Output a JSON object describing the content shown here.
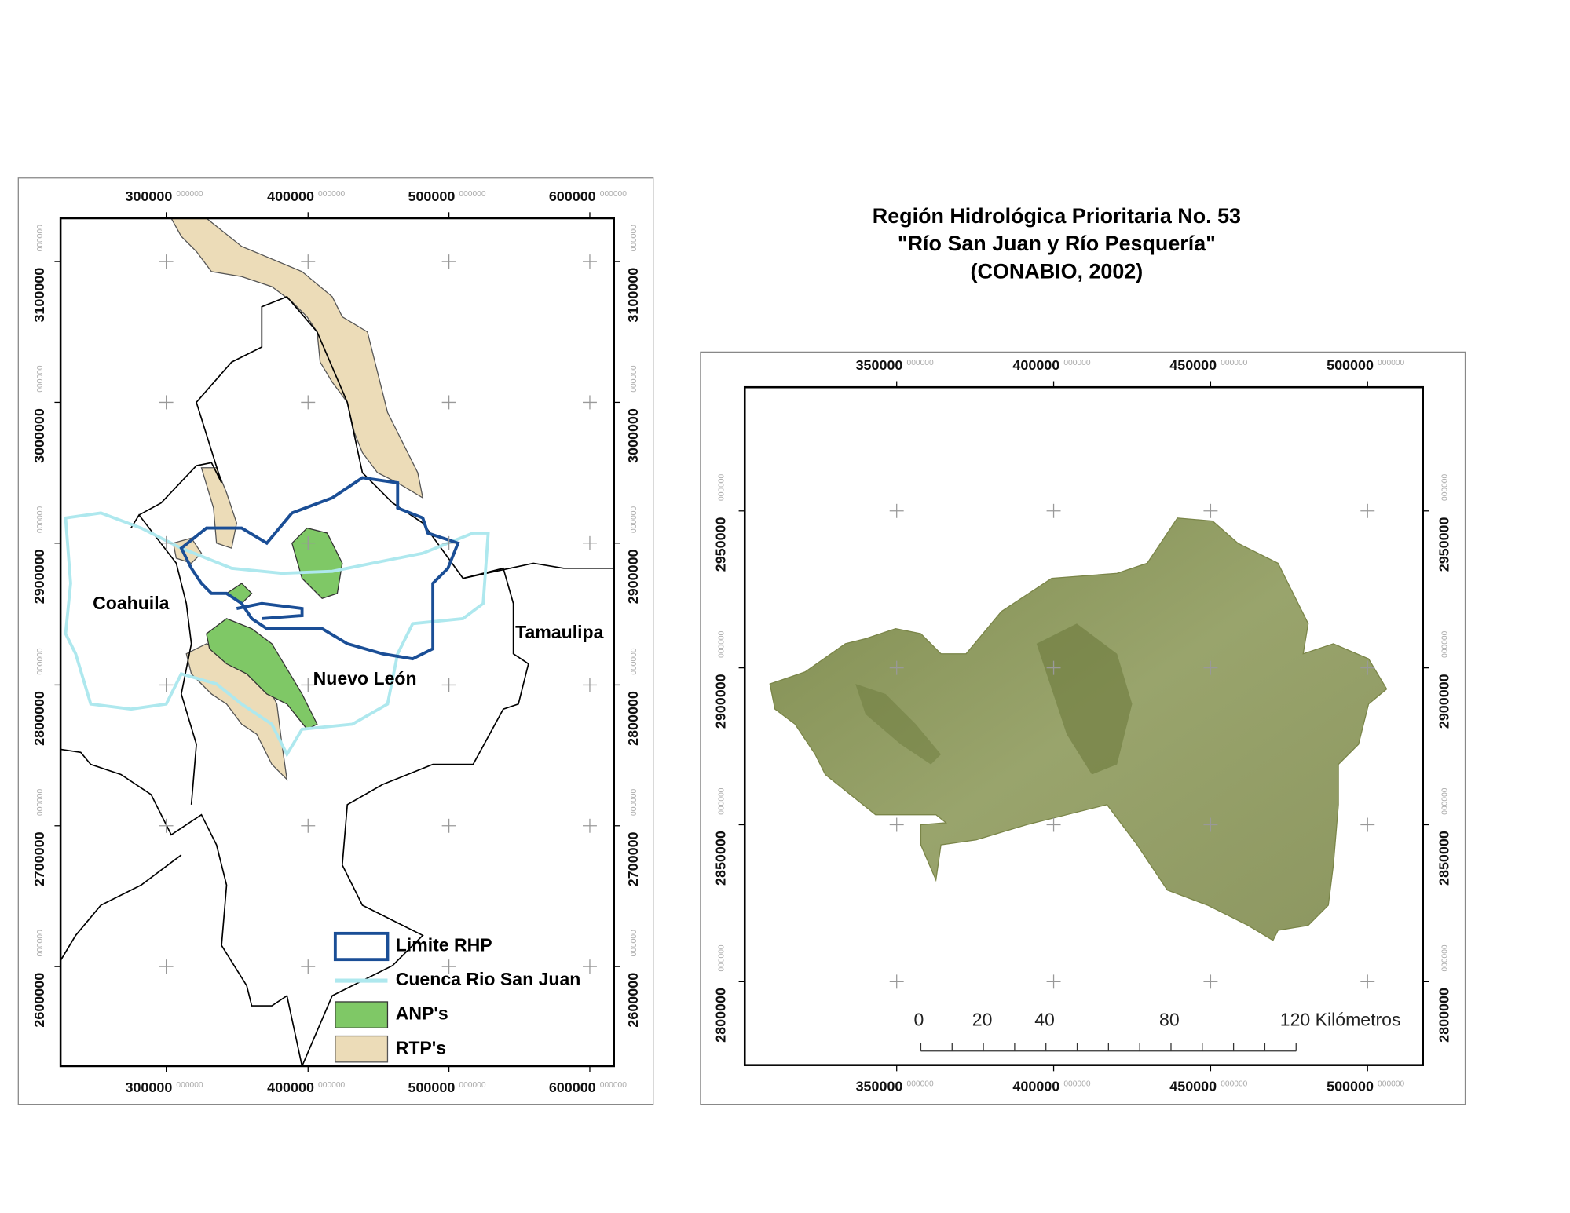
{
  "title": [
    "Región Hidrológica Prioritaria No. 53",
    "\"Río San Juan y Río Pesquería\"",
    "(CONABIO, 2002)"
  ],
  "tick_suffix": "000000",
  "left_map": {
    "x_ticks": [
      "300000",
      "400000",
      "500000",
      "600000"
    ],
    "y_ticks": [
      "3100000",
      "3000000",
      "2900000",
      "2800000",
      "2700000",
      "2600000"
    ],
    "places": [
      "Coahuila",
      "Nuevo León",
      "Tamaulipa"
    ],
    "legend": [
      "Limite RHP",
      "Cuenca Rio San Juan",
      "ANP's",
      "RTP's"
    ]
  },
  "right_map": {
    "x_ticks": [
      "350000",
      "400000",
      "450000",
      "500000"
    ],
    "y_ticks": [
      "2950000",
      "2900000",
      "2850000",
      "2800000"
    ],
    "scale_bar": [
      "0",
      "20",
      "40",
      "80",
      "120 Kilómetros"
    ]
  }
}
